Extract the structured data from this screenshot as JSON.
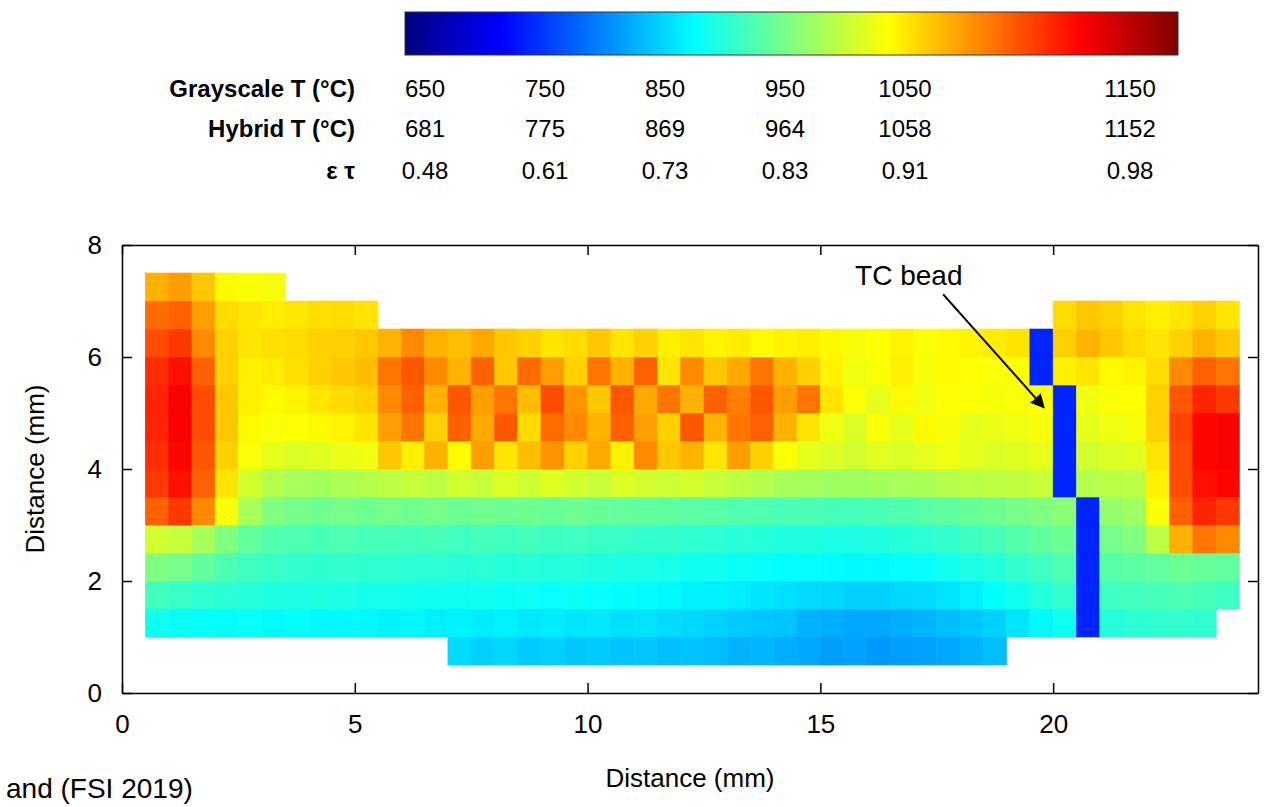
{
  "chart_data": {
    "type": "heatmap",
    "x_label": "Distance (mm)",
    "y_label": "Distance (mm)",
    "xlim": [
      0,
      24.4
    ],
    "xticks": [
      0,
      5,
      10,
      15,
      20
    ],
    "ylim": [
      0,
      8
    ],
    "yticks": [
      0,
      2,
      4,
      6,
      8
    ],
    "x": [
      0.25,
      0.75,
      1.25,
      1.75,
      2.25,
      2.75,
      3.25,
      3.75,
      4.25,
      4.75,
      5.25,
      5.75,
      6.25,
      6.75,
      7.25,
      7.75,
      8.25,
      8.75,
      9.25,
      9.75,
      10.25,
      10.75,
      11.25,
      11.75,
      12.25,
      12.75,
      13.25,
      13.75,
      14.25,
      14.75,
      15.25,
      15.75,
      16.25,
      16.75,
      17.25,
      17.75,
      18.25,
      18.75,
      19.25,
      19.75,
      20.25,
      20.75,
      21.25,
      21.75,
      22.25,
      22.75,
      23.25,
      23.75
    ],
    "y": [
      0.75,
      1.25,
      1.75,
      2.25,
      2.75,
      3.25,
      3.75,
      4.25,
      4.75,
      5.25,
      5.75,
      6.25,
      6.75,
      7.25
    ],
    "values": [
      [
        null,
        null,
        null,
        null,
        null,
        null,
        null,
        null,
        null,
        null,
        null,
        null,
        null,
        null,
        820,
        815,
        818,
        812,
        815,
        810,
        812,
        808,
        810,
        805,
        808,
        805,
        800,
        802,
        798,
        795,
        790,
        792,
        788,
        790,
        792,
        795,
        800,
        805,
        null,
        null,
        null,
        null,
        null,
        null,
        null,
        null,
        null,
        null
      ],
      [
        null,
        845,
        842,
        840,
        838,
        840,
        836,
        838,
        835,
        835,
        835,
        832,
        834,
        830,
        832,
        828,
        830,
        826,
        828,
        825,
        826,
        822,
        824,
        820,
        818,
        815,
        812,
        810,
        808,
        800,
        798,
        795,
        795,
        798,
        800,
        805,
        810,
        815,
        825,
        835,
        845,
        730,
        855,
        858,
        860,
        862,
        860,
        null
      ],
      [
        null,
        870,
        865,
        860,
        858,
        855,
        852,
        850,
        852,
        850,
        848,
        848,
        846,
        845,
        844,
        845,
        842,
        843,
        840,
        842,
        840,
        838,
        836,
        835,
        832,
        830,
        828,
        825,
        822,
        820,
        818,
        815,
        815,
        818,
        820,
        825,
        830,
        838,
        845,
        855,
        862,
        730,
        868,
        870,
        872,
        875,
        872,
        868
      ],
      [
        null,
        900,
        895,
        885,
        875,
        868,
        865,
        862,
        860,
        862,
        860,
        860,
        858,
        858,
        856,
        858,
        855,
        856,
        854,
        855,
        852,
        850,
        850,
        848,
        846,
        845,
        842,
        840,
        838,
        838,
        836,
        835,
        835,
        838,
        840,
        845,
        850,
        855,
        862,
        868,
        875,
        730,
        880,
        882,
        885,
        890,
        888,
        885
      ],
      [
        null,
        940,
        935,
        920,
        900,
        885,
        878,
        875,
        872,
        875,
        872,
        872,
        870,
        872,
        868,
        870,
        868,
        870,
        866,
        868,
        865,
        864,
        862,
        862,
        860,
        858,
        856,
        855,
        852,
        852,
        850,
        850,
        852,
        855,
        858,
        862,
        868,
        872,
        878,
        885,
        890,
        730,
        895,
        900,
        930,
        1000,
        1030,
        1020
      ],
      [
        null,
        1040,
        1060,
        1020,
        960,
        920,
        900,
        895,
        892,
        895,
        892,
        895,
        892,
        895,
        890,
        893,
        890,
        892,
        888,
        890,
        888,
        886,
        885,
        884,
        882,
        880,
        878,
        876,
        874,
        874,
        872,
        872,
        874,
        876,
        880,
        884,
        888,
        892,
        896,
        900,
        905,
        730,
        910,
        915,
        960,
        1040,
        1070,
        1060
      ],
      [
        null,
        1060,
        1080,
        1040,
        975,
        940,
        925,
        920,
        918,
        922,
        925,
        930,
        935,
        930,
        940,
        935,
        945,
        938,
        948,
        940,
        935,
        945,
        940,
        938,
        942,
        935,
        930,
        925,
        920,
        918,
        915,
        915,
        918,
        920,
        922,
        925,
        928,
        930,
        932,
        935,
        730,
        925,
        928,
        930,
        970,
        1050,
        1080,
        1085
      ],
      [
        null,
        1065,
        1085,
        1045,
        985,
        960,
        950,
        945,
        948,
        952,
        955,
        990,
        970,
        1000,
        965,
        1010,
        975,
        995,
        1015,
        985,
        1005,
        970,
        1020,
        990,
        1000,
        975,
        1010,
        985,
        960,
        950,
        945,
        940,
        948,
        945,
        950,
        955,
        950,
        945,
        948,
        950,
        730,
        940,
        945,
        948,
        975,
        1050,
        1085,
        1090
      ],
      [
        null,
        1070,
        1090,
        1050,
        990,
        965,
        960,
        962,
        965,
        968,
        975,
        1010,
        1030,
        985,
        1040,
        1005,
        1045,
        980,
        1035,
        1020,
        1000,
        1040,
        1010,
        985,
        1045,
        1000,
        1030,
        1040,
        1000,
        975,
        955,
        945,
        960,
        950,
        965,
        958,
        950,
        952,
        955,
        958,
        730,
        950,
        955,
        958,
        985,
        1055,
        1085,
        1090
      ],
      [
        null,
        1070,
        1090,
        1050,
        990,
        970,
        965,
        968,
        975,
        980,
        985,
        1020,
        1040,
        1000,
        1045,
        1010,
        1030,
        995,
        1050,
        1015,
        990,
        1045,
        1005,
        1030,
        1000,
        1040,
        1025,
        1045,
        1010,
        1030,
        975,
        960,
        950,
        965,
        955,
        962,
        960,
        958,
        960,
        962,
        730,
        955,
        960,
        962,
        985,
        1045,
        1070,
        1060
      ],
      [
        null,
        1065,
        1080,
        1040,
        985,
        970,
        972,
        978,
        985,
        990,
        995,
        1030,
        1045,
        1020,
        1000,
        1040,
        990,
        1035,
        1010,
        985,
        1030,
        1000,
        1040,
        975,
        1020,
        990,
        1005,
        1030,
        1000,
        985,
        968,
        955,
        960,
        970,
        958,
        965,
        962,
        960,
        962,
        730,
        970,
        975,
        965,
        968,
        980,
        1020,
        1040,
        1030
      ],
      [
        null,
        1050,
        1060,
        1020,
        985,
        975,
        978,
        980,
        985,
        985,
        990,
        1000,
        1020,
        1000,
        995,
        1005,
        990,
        985,
        975,
        980,
        990,
        975,
        985,
        970,
        975,
        968,
        972,
        965,
        968,
        970,
        965,
        958,
        962,
        968,
        960,
        965,
        968,
        972,
        975,
        730,
        985,
        1000,
        990,
        980,
        975,
        985,
        1000,
        990
      ],
      [
        null,
        1035,
        1040,
        1010,
        980,
        975,
        972,
        975,
        978,
        980,
        975,
        null,
        null,
        null,
        null,
        null,
        null,
        null,
        null,
        null,
        null,
        null,
        null,
        null,
        null,
        null,
        null,
        null,
        null,
        null,
        null,
        null,
        null,
        null,
        null,
        null,
        null,
        null,
        null,
        null,
        980,
        990,
        985,
        975,
        970,
        975,
        985,
        975
      ],
      [
        null,
        1000,
        1010,
        990,
        965,
        960,
        958,
        null,
        null,
        null,
        null,
        null,
        null,
        null,
        null,
        null,
        null,
        null,
        null,
        null,
        null,
        null,
        null,
        null,
        null,
        null,
        null,
        null,
        null,
        null,
        null,
        null,
        null,
        null,
        null,
        null,
        null,
        null,
        null,
        null,
        null,
        null,
        null,
        null,
        null,
        null,
        null,
        null
      ]
    ],
    "color_bar": {
      "label": "Grayscale T (°C)",
      "range": [
        650,
        1150
      ],
      "ticks": [
        650,
        750,
        850,
        950,
        1050,
        1150
      ],
      "rows": [
        {
          "label": "Hybrid T (°C)",
          "values": [
            681,
            775,
            869,
            964,
            1058,
            1152
          ]
        },
        {
          "label": "ε τ",
          "values": [
            0.48,
            0.61,
            0.73,
            0.83,
            0.91,
            0.98
          ]
        }
      ]
    },
    "annotations": [
      {
        "text": "TC bead",
        "x": 19.8,
        "y": 5.1,
        "text_x": 16.9,
        "text_y": 7.45
      }
    ],
    "source": "and (FSI 2019)"
  }
}
